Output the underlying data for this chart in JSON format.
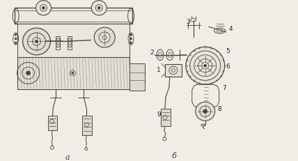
{
  "bg_color": "#f0ede6",
  "lc": "#4a4540",
  "lc2": "#6a6560",
  "label_a": "a",
  "label_b": "б",
  "fig_width": 4.28,
  "fig_height": 2.32,
  "dpi": 100
}
